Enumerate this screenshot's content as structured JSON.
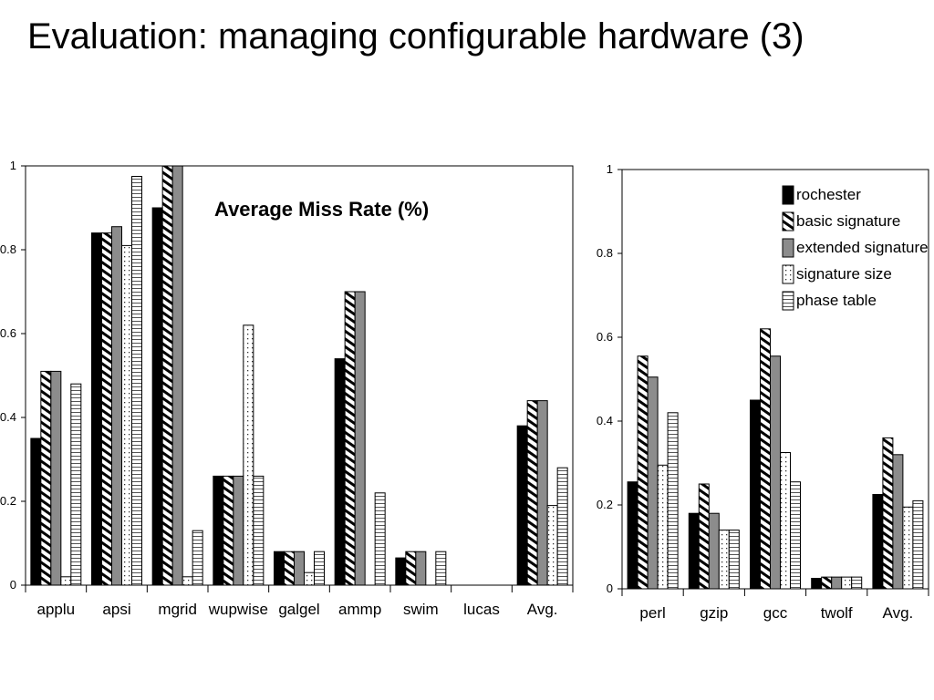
{
  "slide": {
    "title": "Evaluation: managing configurable hardware (3)"
  },
  "colors": {
    "rochester": "#000000",
    "basic_signature": "hatch-diagonal",
    "extended_signature": "#8c8c8c",
    "signature_size": "dotted",
    "phase_table": "horizontal-lines"
  },
  "chart_data": [
    {
      "type": "bar",
      "title": "Average Miss Rate (%)",
      "ylim": [
        0,
        1
      ],
      "yticks": [
        "0",
        "0.2",
        "0.4",
        "0.6",
        "0.8",
        "1"
      ],
      "categories": [
        "applu",
        "apsi",
        "mgrid",
        "wupwise",
        "galgel",
        "ammp",
        "swim",
        "lucas",
        "Avg."
      ],
      "series": [
        {
          "name": "rochester",
          "values": [
            0.35,
            0.84,
            0.9,
            0.26,
            0.08,
            0.54,
            0.065,
            0,
            0.38
          ]
        },
        {
          "name": "basic signature",
          "values": [
            0.51,
            0.84,
            1.0,
            0.26,
            0.08,
            0.7,
            0.08,
            0,
            0.44
          ]
        },
        {
          "name": "extended signature",
          "values": [
            0.51,
            0.855,
            1.0,
            0.26,
            0.08,
            0.7,
            0.08,
            0,
            0.44
          ]
        },
        {
          "name": "signature size",
          "values": [
            0.02,
            0.81,
            0.02,
            0.62,
            0.03,
            0,
            0,
            0,
            0.19
          ]
        },
        {
          "name": "phase table",
          "values": [
            0.48,
            0.975,
            0.13,
            0.26,
            0.08,
            0.22,
            0.08,
            0,
            0.28
          ]
        }
      ],
      "grid": false,
      "legend": "none"
    },
    {
      "type": "bar",
      "ylim": [
        0,
        1
      ],
      "yticks": [
        "0",
        "0.2",
        "0.4",
        "0.6",
        "0.8",
        "1"
      ],
      "categories": [
        "perl",
        "gzip",
        "gcc",
        "twolf",
        "Avg."
      ],
      "series": [
        {
          "name": "rochester",
          "values": [
            0.255,
            0.18,
            0.45,
            0.025,
            0.225
          ]
        },
        {
          "name": "basic signature",
          "values": [
            0.555,
            0.25,
            0.62,
            0.028,
            0.36
          ]
        },
        {
          "name": "extended signature",
          "values": [
            0.505,
            0.18,
            0.555,
            0.028,
            0.32
          ]
        },
        {
          "name": "signature size",
          "values": [
            0.295,
            0.14,
            0.325,
            0.028,
            0.195
          ]
        },
        {
          "name": "phase table",
          "values": [
            0.42,
            0.14,
            0.255,
            0.028,
            0.21
          ]
        }
      ],
      "legend_labels": [
        "rochester",
        "basic signature",
        "extended signature",
        "signature size",
        "phase table"
      ],
      "grid": false,
      "legend": "top-right"
    }
  ]
}
